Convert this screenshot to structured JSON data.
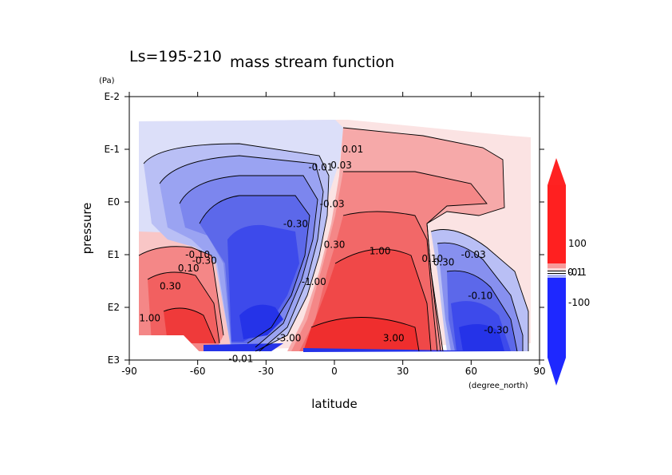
{
  "chart_data": {
    "type": "heatmap",
    "title": "mass stream function",
    "subtitle": "Ls=195-210",
    "xlabel": "latitude",
    "ylabel": "pressure",
    "x_unit": "(degree_north)",
    "y_unit": "(Pa)",
    "xlim": [
      -90,
      90
    ],
    "ylim": [
      0.01,
      1000
    ],
    "y_scale": "log",
    "y_reversed": true,
    "x_ticks": [
      "-90",
      "-60",
      "-30",
      "0",
      "30",
      "60",
      "90"
    ],
    "x_tick_values": [
      -90,
      -60,
      -30,
      0,
      30,
      60,
      90
    ],
    "y_ticks": [
      "E-2",
      "E-1",
      "E0",
      "E1",
      "E2",
      "E3"
    ],
    "y_tick_values": [
      0.01,
      0.1,
      1,
      10,
      100,
      1000
    ],
    "colorbar": {
      "labels": [
        "100",
        "-100"
      ],
      "values": [
        100,
        -100
      ],
      "crowded_labels": [
        "0.1",
        "-0.1"
      ],
      "positive_color": "#ff2020",
      "negative_color": "#1e28ff",
      "extend": "both"
    },
    "contour_labels": [
      {
        "text": "0.01",
        "lat": 8,
        "p": 0.1
      },
      {
        "text": "0.03",
        "lat": 3,
        "p": 0.2
      },
      {
        "text": "-0.01",
        "lat": -6,
        "p": 0.22
      },
      {
        "text": "-0.03",
        "lat": -1,
        "p": 1.1
      },
      {
        "text": "-0.30",
        "lat": -17,
        "p": 2.6
      },
      {
        "text": "0.30",
        "lat": 0,
        "p": 6.5
      },
      {
        "text": "1.00",
        "lat": 20,
        "p": 8.5
      },
      {
        "text": "-1.00",
        "lat": -9,
        "p": 33
      },
      {
        "text": "-3.00",
        "lat": -20,
        "p": 380
      },
      {
        "text": "3.00",
        "lat": 26,
        "p": 380
      },
      {
        "text": "0.10",
        "lat": -64,
        "p": 18
      },
      {
        "text": "0.30",
        "lat": -72,
        "p": 40
      },
      {
        "text": "1.00",
        "lat": -81,
        "p": 160
      },
      {
        "text": "-0.10",
        "lat": -60,
        "p": 10
      },
      {
        "text": "-0.30",
        "lat": -57,
        "p": 13
      },
      {
        "text": "0.10",
        "lat": 43,
        "p": 12
      },
      {
        "text": "0.30",
        "lat": 48,
        "p": 14
      },
      {
        "text": "-0.03",
        "lat": 61,
        "p": 10
      },
      {
        "text": "-0.10",
        "lat": 64,
        "p": 60
      },
      {
        "text": "-0.30",
        "lat": 71,
        "p": 270
      },
      {
        "text": "-0.01",
        "lat": -41,
        "p": 950
      }
    ],
    "grid": false,
    "legend": "colorbar-right"
  }
}
